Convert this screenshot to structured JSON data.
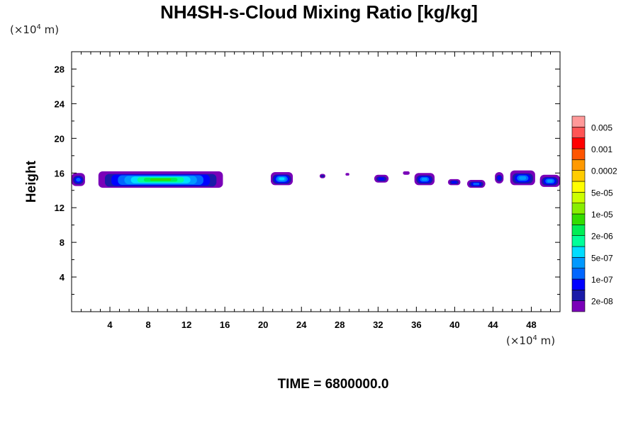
{
  "title": "NH4SH-s-Cloud Mixing Ratio [kg/kg]",
  "y_unit": {
    "prefix": "(×10",
    "exp": "4",
    "suffix": " m)"
  },
  "x_unit": {
    "prefix": "(×10",
    "exp": "4",
    "suffix": " m)"
  },
  "time_label": "TIME = 6800000.0",
  "chart_data": {
    "type": "heatmap",
    "title": "NH4SH-s-Cloud Mixing Ratio [kg/kg]",
    "xlabel": "",
    "ylabel": "Height",
    "x_unit": "×10^4 m",
    "y_unit": "×10^4 m",
    "xlim": [
      0,
      51
    ],
    "ylim": [
      0,
      30
    ],
    "x_ticks": [
      4,
      8,
      12,
      16,
      20,
      24,
      28,
      32,
      36,
      40,
      44,
      48
    ],
    "y_ticks": [
      4,
      8,
      12,
      16,
      20,
      24,
      28
    ],
    "colorbar": {
      "levels": [
        "2e-08",
        "1e-07",
        "5e-07",
        "2e-06",
        "1e-05",
        "5e-05",
        "0.0002",
        "0.001",
        "0.005"
      ],
      "colors": [
        "#7a00b8",
        "#1a1aa8",
        "#0000ff",
        "#0066ff",
        "#0099ff",
        "#00ddff",
        "#00ff99",
        "#00ee55",
        "#33dd00",
        "#88ee00",
        "#ccff00",
        "#ffff00",
        "#ffcc00",
        "#ff9900",
        "#ff5500",
        "#ff0000",
        "#ff5555",
        "#ff9999"
      ]
    },
    "cloud_layer": {
      "y_base": 14.4,
      "y_top": 16.2
    },
    "clouds": [
      {
        "x0": 0.0,
        "x1": 1.4,
        "y0": 14.5,
        "y1": 16.0,
        "peak": 3
      },
      {
        "x0": 2.8,
        "x1": 15.8,
        "y0": 14.3,
        "y1": 16.2,
        "peak": 8
      },
      {
        "x0": 20.8,
        "x1": 23.1,
        "y0": 14.6,
        "y1": 16.1,
        "peak": 5
      },
      {
        "x0": 25.9,
        "x1": 26.5,
        "y0": 15.4,
        "y1": 15.9,
        "peak": 1
      },
      {
        "x0": 28.6,
        "x1": 29.0,
        "y0": 15.7,
        "y1": 16.0,
        "peak": 0
      },
      {
        "x0": 31.6,
        "x1": 33.1,
        "y0": 14.9,
        "y1": 15.8,
        "peak": 2
      },
      {
        "x0": 34.6,
        "x1": 35.3,
        "y0": 15.8,
        "y1": 16.2,
        "peak": 0
      },
      {
        "x0": 35.8,
        "x1": 37.9,
        "y0": 14.6,
        "y1": 16.0,
        "peak": 4
      },
      {
        "x0": 39.3,
        "x1": 40.6,
        "y0": 14.6,
        "y1": 15.3,
        "peak": 2
      },
      {
        "x0": 41.3,
        "x1": 43.2,
        "y0": 14.3,
        "y1": 15.2,
        "peak": 3
      },
      {
        "x0": 44.2,
        "x1": 45.1,
        "y0": 14.8,
        "y1": 16.1,
        "peak": 2
      },
      {
        "x0": 45.8,
        "x1": 48.4,
        "y0": 14.6,
        "y1": 16.3,
        "peak": 4
      },
      {
        "x0": 48.9,
        "x1": 51.0,
        "y0": 14.4,
        "y1": 15.8,
        "peak": 4
      }
    ]
  }
}
